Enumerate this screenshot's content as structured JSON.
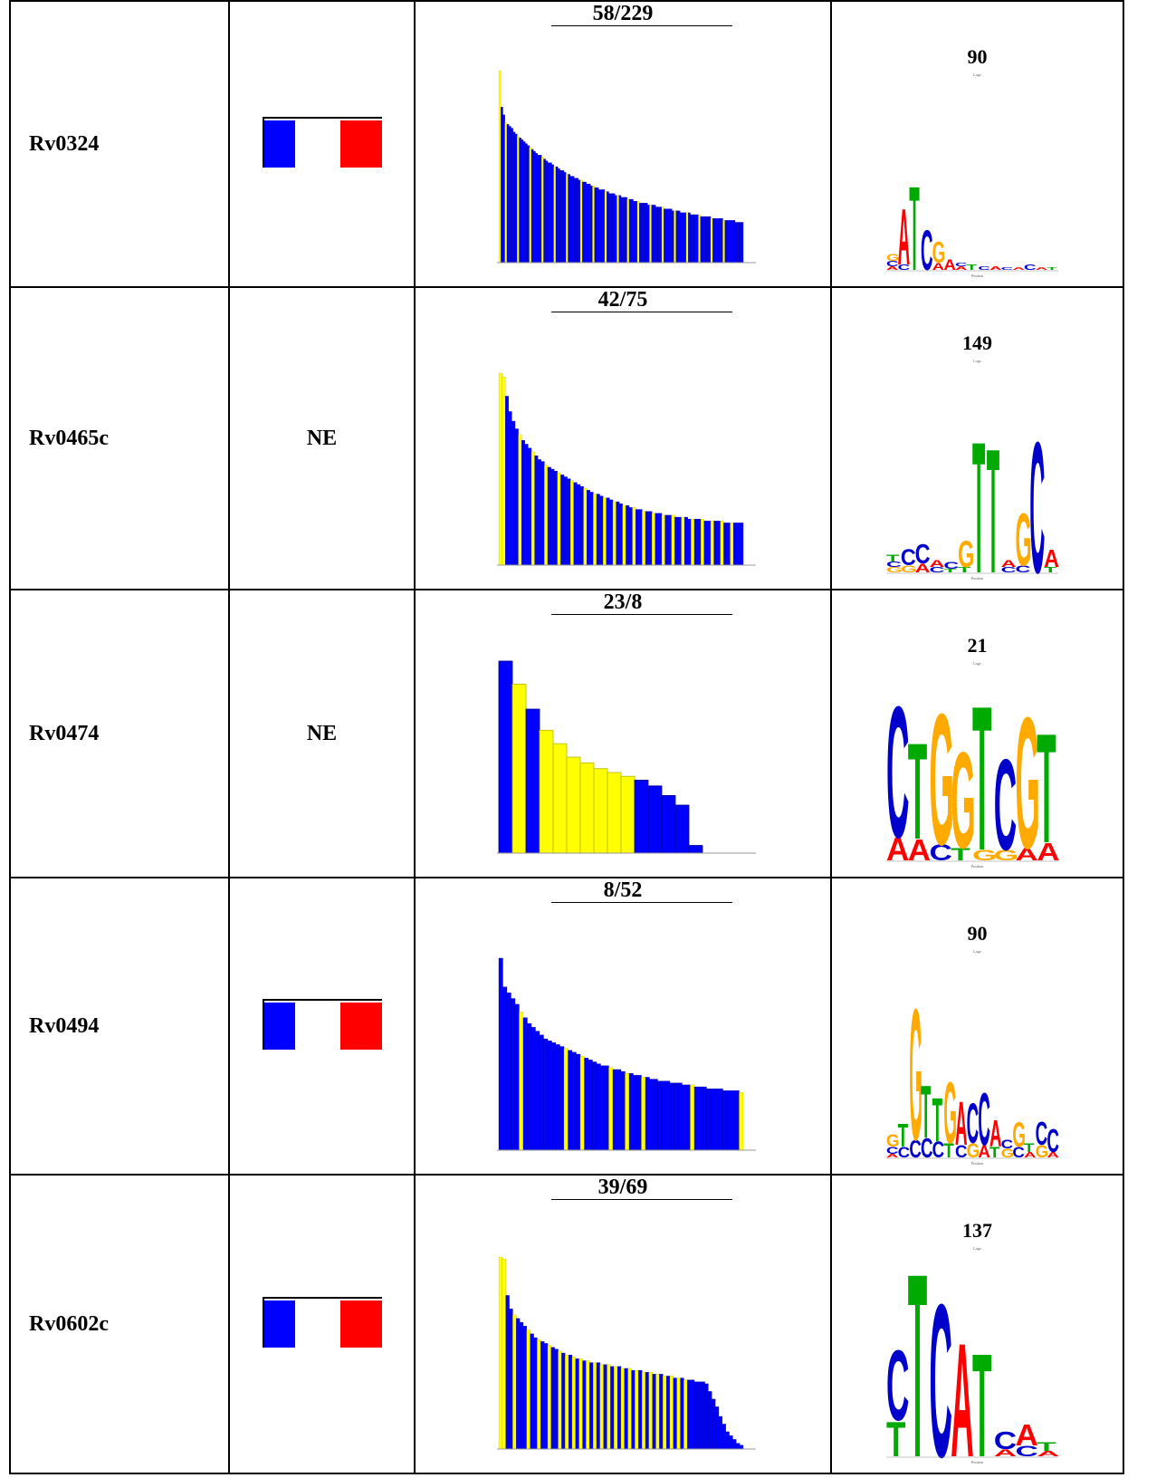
{
  "table": {
    "rows": [
      {
        "gene": "Rv0324",
        "status": "",
        "profile_ratio": "58/229",
        "logo_value": "90",
        "logo_caption": "Logo",
        "logo_axis": "Position",
        "profile_bars": [
          1.0,
          0.81,
          0.77,
          0.73,
          0.72,
          0.71,
          0.7,
          0.68,
          0.67,
          0.66,
          0.65,
          0.64,
          0.63,
          0.62,
          0.61,
          0.6,
          0.59,
          0.58,
          0.57,
          0.56,
          0.56,
          0.55,
          0.54,
          0.53,
          0.52,
          0.52,
          0.51,
          0.5,
          0.5,
          0.49,
          0.48,
          0.48,
          0.47,
          0.46,
          0.46,
          0.45,
          0.45,
          0.44,
          0.44,
          0.43,
          0.43,
          0.42,
          0.42,
          0.41,
          0.41,
          0.4,
          0.4,
          0.39,
          0.39,
          0.38,
          0.38,
          0.38,
          0.37,
          0.37,
          0.36,
          0.36,
          0.36,
          0.35,
          0.35,
          0.35,
          0.34,
          0.34,
          0.34,
          0.33,
          0.33,
          0.33,
          0.32,
          0.32,
          0.32,
          0.31,
          0.31,
          0.31,
          0.31,
          0.3,
          0.3,
          0.3,
          0.3,
          0.29,
          0.29,
          0.29,
          0.29,
          0.28,
          0.28,
          0.28,
          0.28,
          0.27,
          0.27,
          0.27,
          0.27,
          0.26,
          0.26,
          0.26,
          0.26,
          0.26,
          0.25,
          0.25,
          0.25,
          0.25,
          0.25,
          0.24,
          0.24,
          0.24,
          0.24,
          0.24,
          0.23,
          0.23,
          0.23,
          0.23,
          0.23,
          0.23,
          0.22,
          0.22,
          0.22,
          0.22,
          0.22,
          0.22,
          0.21,
          0.21,
          0.21,
          0.21
        ],
        "profile_marked": [
          0,
          3,
          9,
          15,
          21,
          27,
          33,
          40,
          46,
          52,
          58,
          63,
          68,
          74,
          80,
          86,
          92,
          98,
          104,
          110
        ]
      },
      {
        "gene": "Rv0465c",
        "status": "NE",
        "profile_ratio": "42/75",
        "logo_value": "149",
        "logo_caption": "Logo",
        "logo_axis": "Position",
        "profile_bars": [
          1.0,
          0.98,
          0.88,
          0.8,
          0.75,
          0.71,
          0.68,
          0.65,
          0.63,
          0.61,
          0.59,
          0.57,
          0.55,
          0.54,
          0.52,
          0.51,
          0.5,
          0.49,
          0.48,
          0.47,
          0.46,
          0.45,
          0.44,
          0.43,
          0.42,
          0.41,
          0.4,
          0.39,
          0.38,
          0.37,
          0.37,
          0.36,
          0.35,
          0.35,
          0.34,
          0.33,
          0.33,
          0.32,
          0.31,
          0.31,
          0.3,
          0.3,
          0.29,
          0.29,
          0.28,
          0.28,
          0.28,
          0.27,
          0.27,
          0.27,
          0.26,
          0.26,
          0.26,
          0.26,
          0.25,
          0.25,
          0.25,
          0.25,
          0.24,
          0.24,
          0.24,
          0.24,
          0.24,
          0.23,
          0.23,
          0.23,
          0.23,
          0.23,
          0.23,
          0.22,
          0.22,
          0.22,
          0.22,
          0.22,
          0.22
        ],
        "profile_marked": [
          0,
          1,
          6,
          10,
          14,
          18,
          22,
          26,
          29,
          32,
          35,
          38,
          41,
          44,
          47,
          50,
          53,
          56,
          59,
          62,
          65,
          68,
          71
        ]
      },
      {
        "gene": "Rv0474",
        "status": "NE",
        "profile_ratio": "23/8",
        "logo_value": "21",
        "logo_caption": "Logo",
        "logo_axis": "Position",
        "profile_bars": [
          1.0,
          0.88,
          0.75,
          0.64,
          0.57,
          0.5,
          0.47,
          0.44,
          0.42,
          0.4,
          0.38,
          0.35,
          0.3,
          0.25,
          0.04
        ],
        "profile_marked": [
          1,
          3,
          4,
          5,
          6,
          7,
          8,
          9
        ]
      },
      {
        "gene": "Rv0494",
        "status": "",
        "profile_ratio": "8/52",
        "logo_value": "90",
        "logo_caption": "Logo",
        "logo_axis": "Position",
        "profile_bars": [
          1.0,
          0.85,
          0.82,
          0.79,
          0.76,
          0.72,
          0.69,
          0.66,
          0.64,
          0.62,
          0.6,
          0.58,
          0.57,
          0.56,
          0.55,
          0.54,
          0.53,
          0.52,
          0.51,
          0.5,
          0.49,
          0.48,
          0.47,
          0.46,
          0.45,
          0.44,
          0.44,
          0.43,
          0.42,
          0.42,
          0.41,
          0.4,
          0.4,
          0.39,
          0.39,
          0.38,
          0.38,
          0.37,
          0.37,
          0.36,
          0.36,
          0.36,
          0.35,
          0.35,
          0.35,
          0.34,
          0.34,
          0.34,
          0.33,
          0.33,
          0.33,
          0.32,
          0.32,
          0.32,
          0.32,
          0.31,
          0.31,
          0.31,
          0.31,
          0.3
        ],
        "profile_marked": [
          5,
          16,
          20,
          27,
          31,
          35,
          47,
          59
        ]
      },
      {
        "gene": "Rv0602c",
        "status": "",
        "profile_ratio": "39/69",
        "logo_value": "137",
        "logo_caption": "Logo",
        "logo_axis": "Position",
        "profile_bars": [
          1.0,
          0.99,
          0.8,
          0.73,
          0.7,
          0.68,
          0.66,
          0.64,
          0.62,
          0.6,
          0.58,
          0.57,
          0.56,
          0.55,
          0.54,
          0.53,
          0.52,
          0.51,
          0.5,
          0.49,
          0.49,
          0.48,
          0.47,
          0.47,
          0.46,
          0.46,
          0.45,
          0.45,
          0.45,
          0.44,
          0.44,
          0.44,
          0.43,
          0.43,
          0.43,
          0.42,
          0.42,
          0.42,
          0.41,
          0.41,
          0.41,
          0.4,
          0.4,
          0.4,
          0.39,
          0.39,
          0.39,
          0.38,
          0.38,
          0.38,
          0.37,
          0.37,
          0.37,
          0.36,
          0.36,
          0.36,
          0.35,
          0.35,
          0.35,
          0.34,
          0.3,
          0.26,
          0.22,
          0.17,
          0.13,
          0.09,
          0.07,
          0.05,
          0.03,
          0.02
        ],
        "profile_marked": [
          0,
          1,
          4,
          8,
          11,
          14,
          17,
          19,
          21,
          23,
          25,
          27,
          29,
          31,
          33,
          35,
          37,
          39,
          41,
          43,
          45,
          47,
          49,
          51,
          53
        ]
      }
    ]
  }
}
